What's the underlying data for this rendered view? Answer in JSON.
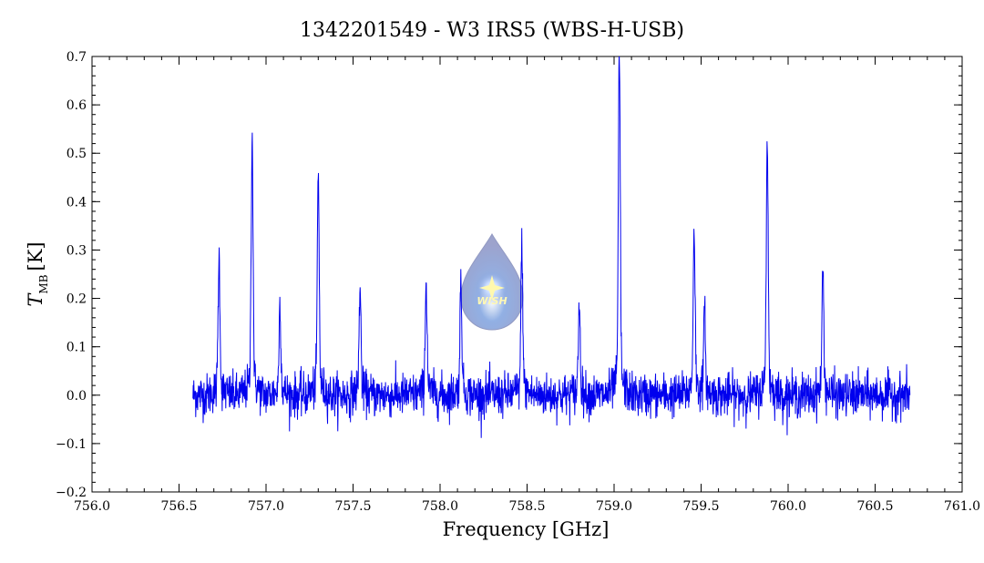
{
  "chart_data": {
    "type": "line",
    "title": "1342201549 - W3 IRS5 (WBS-H-USB)",
    "xlabel": "Frequency [GHz]",
    "ylabel_main": "T",
    "ylabel_sub": "MB",
    "ylabel_unit": "[K]",
    "xlim": [
      756.0,
      761.0
    ],
    "ylim": [
      -0.2,
      0.7
    ],
    "xticks": [
      756.0,
      756.5,
      757.0,
      757.5,
      758.0,
      758.5,
      759.0,
      759.5,
      760.0,
      760.5,
      761.0
    ],
    "xtick_labels": [
      "756.0",
      "756.5",
      "757.0",
      "757.5",
      "758.0",
      "758.5",
      "759.0",
      "759.5",
      "760.0",
      "760.5",
      "761.0"
    ],
    "yticks": [
      -0.2,
      -0.1,
      0.0,
      0.1,
      0.2,
      0.3,
      0.4,
      0.5,
      0.6,
      0.7
    ],
    "ytick_labels": [
      "−0.2",
      "−0.1",
      "0.0",
      "0.1",
      "0.2",
      "0.3",
      "0.4",
      "0.5",
      "0.6",
      "0.7"
    ],
    "grid": false,
    "series": [
      {
        "color": "#0000ee",
        "x_range": [
          756.58,
          760.7
        ],
        "baseline": 0.0,
        "noise_rms": 0.022,
        "peaks": [
          {
            "x": 756.73,
            "y": 0.27
          },
          {
            "x": 756.92,
            "y": 0.51
          },
          {
            "x": 757.08,
            "y": 0.18
          },
          {
            "x": 757.3,
            "y": 0.43
          },
          {
            "x": 757.54,
            "y": 0.21
          },
          {
            "x": 757.92,
            "y": 0.22
          },
          {
            "x": 758.12,
            "y": 0.22
          },
          {
            "x": 758.47,
            "y": 0.29
          },
          {
            "x": 758.8,
            "y": 0.18
          },
          {
            "x": 759.03,
            "y": 0.67
          },
          {
            "x": 759.46,
            "y": 0.33
          },
          {
            "x": 759.52,
            "y": 0.16
          },
          {
            "x": 759.88,
            "y": 0.5
          },
          {
            "x": 760.2,
            "y": 0.24
          }
        ]
      }
    ]
  },
  "logo": {
    "text": "WISH",
    "color": "#8fa3cf"
  }
}
